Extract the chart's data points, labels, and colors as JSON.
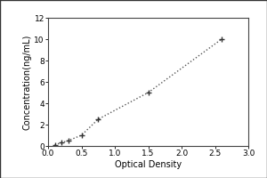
{
  "x": [
    0.1,
    0.2,
    0.3,
    0.5,
    0.75,
    1.5,
    2.6
  ],
  "y": [
    0.1,
    0.3,
    0.5,
    1.0,
    2.5,
    5.0,
    10.0
  ],
  "xlabel": "Optical Density",
  "ylabel": "Concentration(ng/mL)",
  "xlim": [
    0,
    3
  ],
  "ylim": [
    0,
    12
  ],
  "xticks": [
    0,
    0.5,
    1,
    1.5,
    2,
    2.5,
    3
  ],
  "yticks": [
    0,
    2,
    4,
    6,
    8,
    10,
    12
  ],
  "line_color": "#555555",
  "marker_color": "#333333",
  "background_color": "#ffffff",
  "plot_bg_color": "#ffffff",
  "outer_bg_color": "#ffffff",
  "marker": "+",
  "markersize": 5,
  "markeredgewidth": 1.0,
  "linewidth": 1.0,
  "linestyle": "dotted",
  "xlabel_fontsize": 7,
  "ylabel_fontsize": 7,
  "tick_fontsize": 6.5,
  "spine_color": "#444444",
  "spine_linewidth": 0.8
}
